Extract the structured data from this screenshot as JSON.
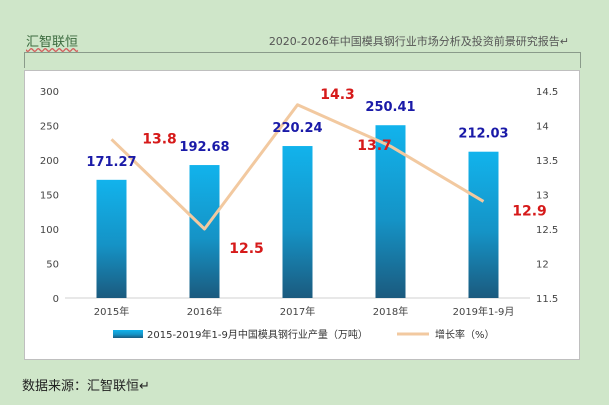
{
  "header": {
    "brand": "汇智联恒",
    "report_title": "2020-2026年中国模具钢行业市场分析及投资前景研究报告↵"
  },
  "footer": {
    "source": "数据来源：汇智联恒↵"
  },
  "chart_data": {
    "type": "bar",
    "categories": [
      "2015年",
      "2016年",
      "2017年",
      "2018年",
      "2019年1-9月"
    ],
    "series": [
      {
        "name": "2015-2019年1-9月中国模具钢行业产量（万吨）",
        "type": "bar",
        "axis": "left",
        "values": [
          171.27,
          192.68,
          220.24,
          250.41,
          212.03
        ],
        "labels": [
          "171.27",
          "192.68",
          "220.24",
          "250.41",
          "212.03"
        ],
        "color": "#1fa6d9"
      },
      {
        "name": "增长率（%）",
        "type": "line",
        "axis": "right",
        "values": [
          13.8,
          12.5,
          14.3,
          13.7,
          12.9
        ],
        "labels": [
          "13.8",
          "12.5",
          "14.3",
          "13.7",
          "12.9"
        ],
        "color": "#f2c9a0"
      }
    ],
    "yleft": {
      "min": 0,
      "max": 300,
      "ticks": [
        "0",
        "50",
        "100",
        "150",
        "200",
        "250",
        "300"
      ]
    },
    "yright": {
      "min": 11.5,
      "max": 14.5,
      "ticks": [
        "11.5",
        "12",
        "12.5",
        "13",
        "13.5",
        "14",
        "14.5"
      ]
    },
    "bar_label_color": "#1a1aa8",
    "line_label_color": "#d61a1a",
    "legend_position": "bottom"
  }
}
